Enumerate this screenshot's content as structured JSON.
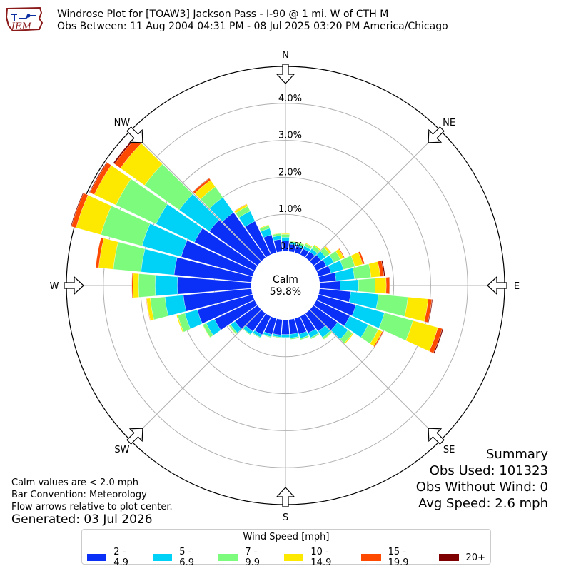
{
  "header": {
    "logo_text": "IEM",
    "title_line1": "Windrose Plot for [TOAW3] Jackson Pass - I-90 @ 1 mi. W of CTH M",
    "title_line2": "Obs Between: 11 Aug 2004 04:31 PM - 08 Jul 2025 03:20 PM America/Chicago"
  },
  "notes": {
    "calm_note": "Calm values are < 2.0 mph",
    "convention": "Bar Convention: Meteorology",
    "flow_note": "Flow arrows relative to plot center.",
    "generated": "Generated: 03 Jul 2026"
  },
  "summary": {
    "heading": "Summary",
    "obs_used": "Obs Used: 101323",
    "obs_without_wind": "Obs Without Wind: 0",
    "avg_speed": "Avg Speed: 2.6 mph"
  },
  "chart_data": {
    "type": "windrose",
    "center_label": "Calm",
    "calm_percent": "59.8%",
    "radial_ticks": [
      0,
      1,
      2,
      3,
      4
    ],
    "radial_tick_labels": [
      "0.0%",
      "1.0%",
      "2.0%",
      "3.0%",
      "4.0%"
    ],
    "radial_max": 5,
    "compass_labels": [
      {
        "label": "N",
        "angle": 0
      },
      {
        "label": "NE",
        "angle": 45
      },
      {
        "label": "E",
        "angle": 90
      },
      {
        "label": "SE",
        "angle": 135
      },
      {
        "label": "S",
        "angle": 180
      },
      {
        "label": "SW",
        "angle": 225
      },
      {
        "label": "W",
        "angle": 270
      },
      {
        "label": "NW",
        "angle": 315
      }
    ],
    "legend_title": "Wind Speed [mph]",
    "bins": [
      {
        "name": "2 - 4.9",
        "color": "#0a2ff7"
      },
      {
        "name": "5 - 6.9",
        "color": "#00d2f7"
      },
      {
        "name": "7 - 9.9",
        "color": "#7dfb7d"
      },
      {
        "name": "10 - 14.9",
        "color": "#fde900"
      },
      {
        "name": "15 - 19.9",
        "color": "#fe4a00"
      },
      {
        "name": "20+",
        "color": "#7f0000"
      }
    ],
    "directions": [
      0,
      10,
      20,
      30,
      40,
      50,
      60,
      70,
      80,
      90,
      100,
      110,
      120,
      130,
      140,
      150,
      160,
      170,
      180,
      190,
      200,
      210,
      220,
      230,
      240,
      250,
      260,
      270,
      280,
      290,
      300,
      310,
      320,
      330,
      340,
      350
    ],
    "values": [
      [
        0.28,
        0.1,
        0.08,
        0.02,
        0.0,
        0.0
      ],
      [
        0.2,
        0.05,
        0.03,
        0.01,
        0.0,
        0.0
      ],
      [
        0.18,
        0.06,
        0.05,
        0.01,
        0.0,
        0.0
      ],
      [
        0.18,
        0.08,
        0.07,
        0.02,
        0.0,
        0.0
      ],
      [
        0.2,
        0.1,
        0.1,
        0.03,
        0.0,
        0.0
      ],
      [
        0.25,
        0.15,
        0.14,
        0.05,
        0.01,
        0.0
      ],
      [
        0.3,
        0.22,
        0.2,
        0.1,
        0.02,
        0.0
      ],
      [
        0.35,
        0.35,
        0.32,
        0.22,
        0.05,
        0.0
      ],
      [
        0.45,
        0.5,
        0.45,
        0.25,
        0.1,
        0.03
      ],
      [
        0.55,
        0.5,
        0.45,
        0.3,
        0.09,
        0.01
      ],
      [
        0.85,
        0.75,
        0.8,
        0.55,
        0.1,
        0.02
      ],
      [
        1.05,
        0.8,
        0.8,
        0.7,
        0.12,
        0.03
      ],
      [
        1.0,
        0.55,
        0.3,
        0.12,
        0.03,
        0.0
      ],
      [
        0.8,
        0.35,
        0.15,
        0.03,
        0.0,
        0.0
      ],
      [
        0.6,
        0.2,
        0.06,
        0.01,
        0.0,
        0.0
      ],
      [
        0.5,
        0.14,
        0.04,
        0.0,
        0.0,
        0.0
      ],
      [
        0.44,
        0.12,
        0.04,
        0.0,
        0.0,
        0.0
      ],
      [
        0.4,
        0.1,
        0.04,
        0.0,
        0.0,
        0.0
      ],
      [
        0.4,
        0.08,
        0.02,
        0.0,
        0.0,
        0.0
      ],
      [
        0.42,
        0.06,
        0.02,
        0.0,
        0.0,
        0.0
      ],
      [
        0.45,
        0.07,
        0.02,
        0.0,
        0.0,
        0.0
      ],
      [
        0.55,
        0.08,
        0.02,
        0.0,
        0.0,
        0.0
      ],
      [
        0.6,
        0.1,
        0.02,
        0.0,
        0.0,
        0.0
      ],
      [
        0.75,
        0.15,
        0.05,
        0.01,
        0.0,
        0.0
      ],
      [
        1.2,
        0.25,
        0.1,
        0.01,
        0.0,
        0.0
      ],
      [
        1.55,
        0.35,
        0.2,
        0.03,
        0.0,
        0.0
      ],
      [
        1.85,
        0.5,
        0.4,
        0.1,
        0.01,
        0.0
      ],
      [
        2.0,
        0.6,
        0.45,
        0.15,
        0.03,
        0.0
      ],
      [
        2.1,
        0.9,
        0.75,
        0.4,
        0.08,
        0.0
      ],
      [
        2.0,
        1.1,
        1.15,
        0.7,
        0.13,
        0.02
      ],
      [
        1.8,
        1.15,
        1.2,
        0.65,
        0.13,
        0.02
      ],
      [
        1.6,
        1.0,
        1.15,
        0.8,
        0.2,
        0.04
      ],
      [
        1.5,
        0.5,
        0.35,
        0.22,
        0.06,
        0.01
      ],
      [
        1.0,
        0.3,
        0.15,
        0.06,
        0.01,
        0.0
      ],
      [
        0.5,
        0.18,
        0.08,
        0.02,
        0.0,
        0.0
      ],
      [
        0.33,
        0.1,
        0.06,
        0.01,
        0.0,
        0.0
      ]
    ]
  }
}
